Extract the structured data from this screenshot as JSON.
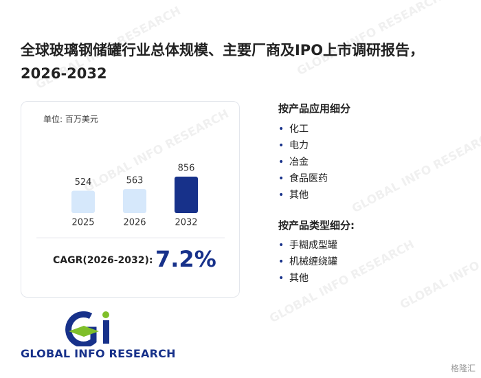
{
  "title": "全球玻璃钢储罐行业总体规模、主要厂商及IPO上市调研报告，2026-2032",
  "chart_data": {
    "type": "bar",
    "unit": "单位: 百万美元",
    "categories": [
      "2025",
      "2026",
      "2032"
    ],
    "values": [
      524,
      563,
      856
    ],
    "colors": [
      "#d6e8fb",
      "#d6e8fb",
      "#17318a"
    ],
    "cagr_label": "CAGR(2026-2032):",
    "cagr": {
      "value": 7.2,
      "label": "7.2%"
    }
  },
  "segments": [
    {
      "title": "按产品应用细分",
      "items": [
        "化工",
        "电力",
        "冶金",
        "食品医药",
        "其他"
      ]
    },
    {
      "title": "按产品类型细分:",
      "items": [
        "手糊成型罐",
        "机械缠绕罐",
        "其他"
      ]
    }
  ],
  "watermark": "GLOBAL INFO RESEARCH",
  "logo_text": "GLOBAL INFO RESEARCH",
  "badge": "格隆汇"
}
